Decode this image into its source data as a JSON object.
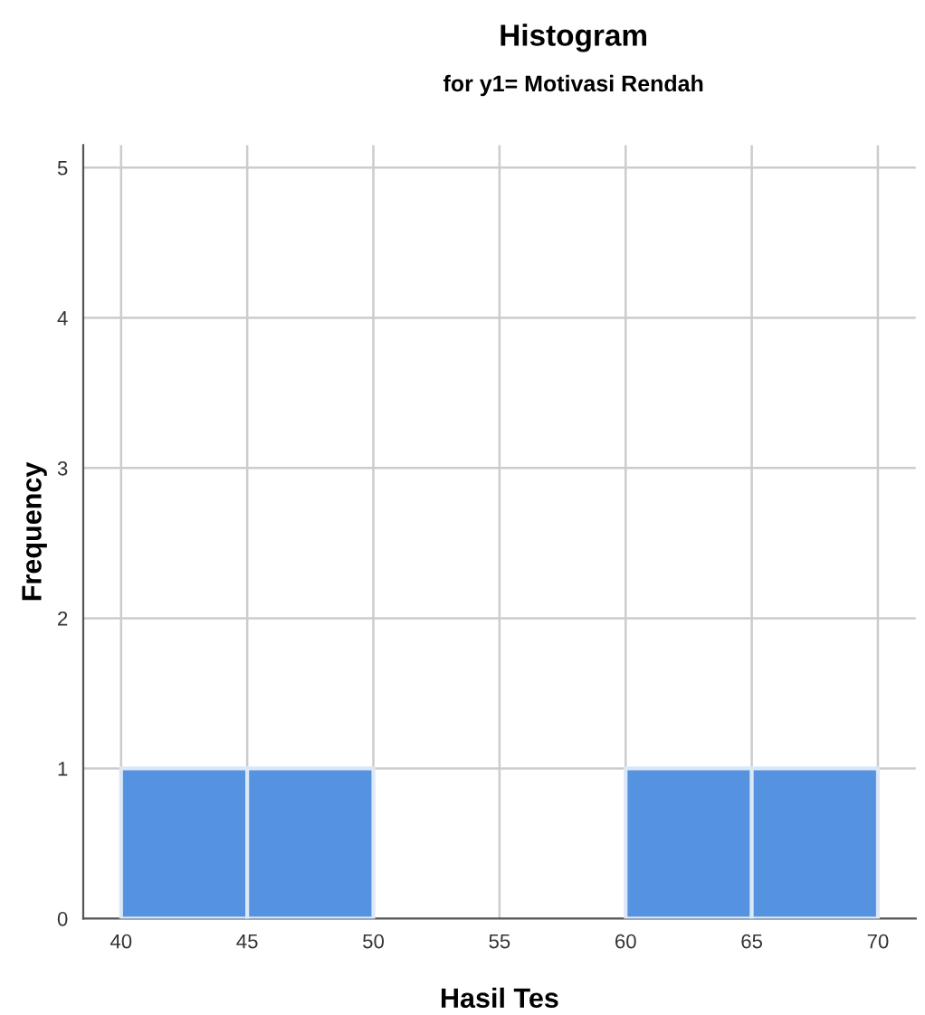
{
  "chart_data": {
    "type": "histogram",
    "title": "Histogram",
    "subtitle": "for y1= Motivasi Rendah",
    "xlabel": "Hasil Tes",
    "ylabel": "Frequency",
    "bins": [
      40,
      45,
      50,
      55,
      60,
      65,
      70
    ],
    "values": [
      1,
      1,
      0,
      0,
      1,
      1
    ],
    "color": "#5592e0",
    "xlim": [
      38.5,
      71.5
    ],
    "xticks": [
      40,
      45,
      50,
      55,
      60,
      65,
      70
    ],
    "ylim": [
      0,
      5.15
    ],
    "yticks": [
      0,
      1,
      2,
      3,
      4,
      5
    ],
    "grid": true
  }
}
